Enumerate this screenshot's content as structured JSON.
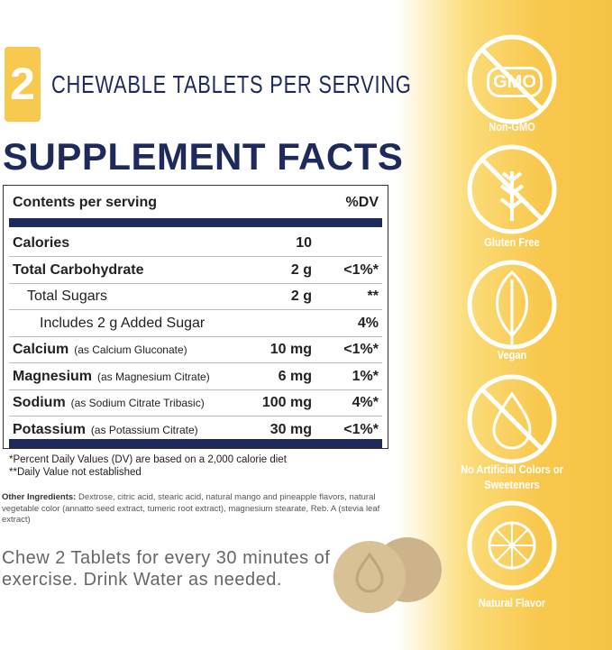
{
  "serving": {
    "number": "2",
    "text": "CHEWABLE TABLETS PER SERVING"
  },
  "title": "SUPPLEMENT FACTS",
  "table": {
    "header": [
      "Contents per serving",
      "%DV"
    ],
    "rows": [
      {
        "name": "Calories",
        "amount": "10"
      },
      {
        "name": "Total Carbohydrate",
        "amount": "2 g",
        "dv": "<1%*"
      },
      {
        "name": "Total Sugars",
        "amount": "2 g",
        "dv": "**"
      },
      {
        "name": "Includes 2 g Added Sugar",
        "dv": "4%"
      },
      {
        "name": "Calcium",
        "note": "(as Calcium Gluconate)",
        "amount": "10 mg",
        "dv": "<1%*"
      },
      {
        "name": "Magnesium",
        "note": "(as Magnesium Citrate)",
        "amount": "6 mg",
        "dv": "1%*"
      },
      {
        "name": "Sodium",
        "note": "(as Sodium Citrate Tribasic)",
        "amount": "100 mg",
        "dv": "4%*"
      },
      {
        "name": "Potassium",
        "note": "(as Potassium Citrate)",
        "amount": "30 mg",
        "dv": "<1%*"
      }
    ]
  },
  "footnotes": [
    "*Percent Daily Values (DV) are based on a 2,000 calorie diet",
    "**Daily Value not established"
  ],
  "ingredients": {
    "label": "Other Ingredients:",
    "text": "Dextrose, citric acid, stearic acid, natural mango and pineapple flavors, natural vegetable color (annatto seed extract, tumeric root extract), magnesium stearate, Reb. A (stevia leaf extract)"
  },
  "directions": "Chew 2 Tablets for every 30 minutes of exercise. Drink Water as needed.",
  "badges": [
    {
      "icon": "GMO",
      "label": "Non-GMO"
    },
    {
      "label": "Gluten Free"
    },
    {
      "label": "Vegan"
    },
    {
      "label": "No Artificial Colors or Sweeteners"
    },
    {
      "label": "Natural Flavor"
    }
  ]
}
